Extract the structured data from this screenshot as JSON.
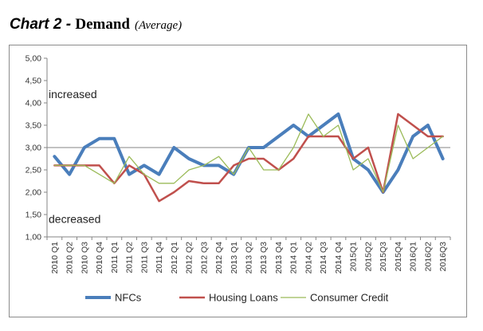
{
  "title": {
    "chart_label": "Chart 2 - ",
    "main": "Demand",
    "sub": "(Average)"
  },
  "chart_data": {
    "type": "line",
    "title": "Chart 2 - Demand (Average)",
    "xlabel": "",
    "ylabel": "",
    "ylim": [
      1.0,
      5.0
    ],
    "yticks": [
      "1,00",
      "1,50",
      "2,00",
      "2,50",
      "3,00",
      "3,50",
      "4,00",
      "4,50",
      "5,00"
    ],
    "reference_line": 3.0,
    "grid": false,
    "legend_position": "bottom",
    "annotations": [
      {
        "text": "increased",
        "y": 4.2
      },
      {
        "text": "decreased",
        "y": 1.4
      }
    ],
    "categories": [
      "2010 Q1",
      "2010 Q2",
      "2010 Q3",
      "2010 Q4",
      "2011 Q1",
      "2011 Q2",
      "2011 Q3",
      "2011 Q4",
      "2012 Q1",
      "2012 Q2",
      "2012 Q3",
      "2012 Q4",
      "2013 Q1",
      "2013 Q2",
      "2013 Q3",
      "2013 Q4",
      "2014 Q1",
      "2014 Q2",
      "2014 Q3",
      "2014 Q4",
      "2015Q1",
      "2015Q2",
      "2015Q3",
      "2015Q4",
      "2016Q1",
      "2016Q2",
      "2016Q3"
    ],
    "series": [
      {
        "name": "NFCs",
        "color": "#4a7ebb",
        "width": 4,
        "values": [
          2.8,
          2.4,
          3.0,
          3.2,
          3.2,
          2.4,
          2.6,
          2.4,
          3.0,
          2.75,
          2.6,
          2.6,
          2.4,
          3.0,
          3.0,
          3.25,
          3.5,
          3.25,
          3.5,
          3.75,
          2.75,
          2.5,
          2.0,
          2.5,
          3.25,
          3.5,
          2.75
        ]
      },
      {
        "name": "Housing Loans",
        "color": "#c0504d",
        "width": 2.5,
        "values": [
          2.6,
          2.6,
          2.6,
          2.6,
          2.2,
          2.6,
          2.4,
          1.8,
          2.0,
          2.25,
          2.2,
          2.2,
          2.6,
          2.75,
          2.75,
          2.5,
          2.75,
          3.25,
          3.25,
          3.25,
          2.75,
          3.0,
          2.0,
          3.75,
          3.5,
          3.25,
          3.25
        ]
      },
      {
        "name": "Consumer Credit",
        "color": "#9bbb59",
        "width": 1.3,
        "values": [
          2.6,
          2.6,
          2.6,
          2.4,
          2.2,
          2.8,
          2.4,
          2.2,
          2.2,
          2.5,
          2.6,
          2.8,
          2.4,
          3.0,
          2.5,
          2.5,
          3.0,
          3.75,
          3.25,
          3.5,
          2.5,
          2.75,
          2.0,
          3.5,
          2.75,
          3.0,
          3.25
        ]
      }
    ]
  }
}
